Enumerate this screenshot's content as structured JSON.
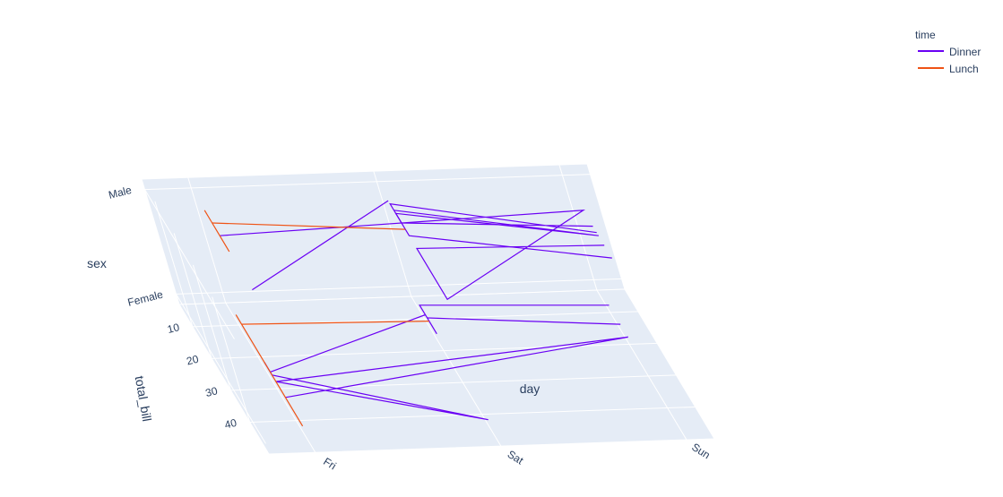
{
  "chart_data": {
    "type": "line3d",
    "axes": {
      "x": {
        "title": "day",
        "categories": [
          "Fri",
          "Sat",
          "Sun"
        ]
      },
      "y": {
        "title": "sex",
        "categories": [
          "Female",
          "Male"
        ]
      },
      "z": {
        "title": "total_bill",
        "ticks": [
          10,
          20,
          30,
          40
        ]
      }
    },
    "legend": {
      "title": "time",
      "placement": "top-right"
    },
    "series": [
      {
        "name": "Dinner",
        "color": "#6a00f4",
        "segments": [
          {
            "y": "Male",
            "points": [
              [
                "Fri",
                18
              ],
              [
                "Sun",
                14
              ],
              [
                "Sat",
                40
              ],
              [
                "Sat",
                24
              ],
              [
                "Sun",
                25
              ]
            ]
          },
          {
            "y": "Male",
            "points": [
              [
                "Sat",
                12
              ],
              [
                "Sun",
                22
              ],
              [
                "Sat",
                13
              ],
              [
                "Sat",
                20
              ],
              [
                "Sun",
                29
              ]
            ]
          },
          {
            "y": "Male",
            "points": [
              [
                "Sun",
                21
              ],
              [
                "Sat",
                10
              ],
              [
                "Sat",
                16
              ],
              [
                "Sun",
                19
              ]
            ]
          },
          {
            "y": "Male",
            "points": [
              [
                "Sat",
                9
              ],
              [
                "Fri",
                35
              ]
            ]
          },
          {
            "y": "Female",
            "points": [
              [
                "Fri",
                28
              ],
              [
                "Sat",
                12
              ],
              [
                "Sat",
                18
              ],
              [
                "Sat",
                15
              ],
              [
                "Sat",
                9
              ],
              [
                "Sun",
                11
              ]
            ]
          },
          {
            "y": "Female",
            "points": [
              [
                "Fri",
                25
              ],
              [
                "Fri",
                29
              ],
              [
                "Sat",
                45
              ],
              [
                "Fri",
                31
              ],
              [
                "Sun",
                21
              ],
              [
                "Fri",
                36
              ]
            ]
          },
          {
            "y": "Female",
            "points": [
              [
                "Sat",
                13
              ],
              [
                "Sun",
                17
              ]
            ]
          }
        ]
      },
      {
        "name": "Lunch",
        "color": "#ef5315",
        "segments": [
          {
            "y": "Male",
            "points": [
              [
                "Fri",
                10
              ],
              [
                "Fri",
                14
              ],
              [
                "Fri",
                23
              ]
            ]
          },
          {
            "y": "Male",
            "points": [
              [
                "Fri",
                14
              ],
              [
                "Sat",
                18
              ]
            ]
          },
          {
            "y": "Female",
            "points": [
              [
                "Fri",
                10
              ],
              [
                "Fri",
                13
              ],
              [
                "Fri",
                45
              ]
            ]
          },
          {
            "y": "Female",
            "points": [
              [
                "Fri",
                13
              ],
              [
                "Sat",
                14
              ]
            ]
          }
        ]
      }
    ]
  }
}
